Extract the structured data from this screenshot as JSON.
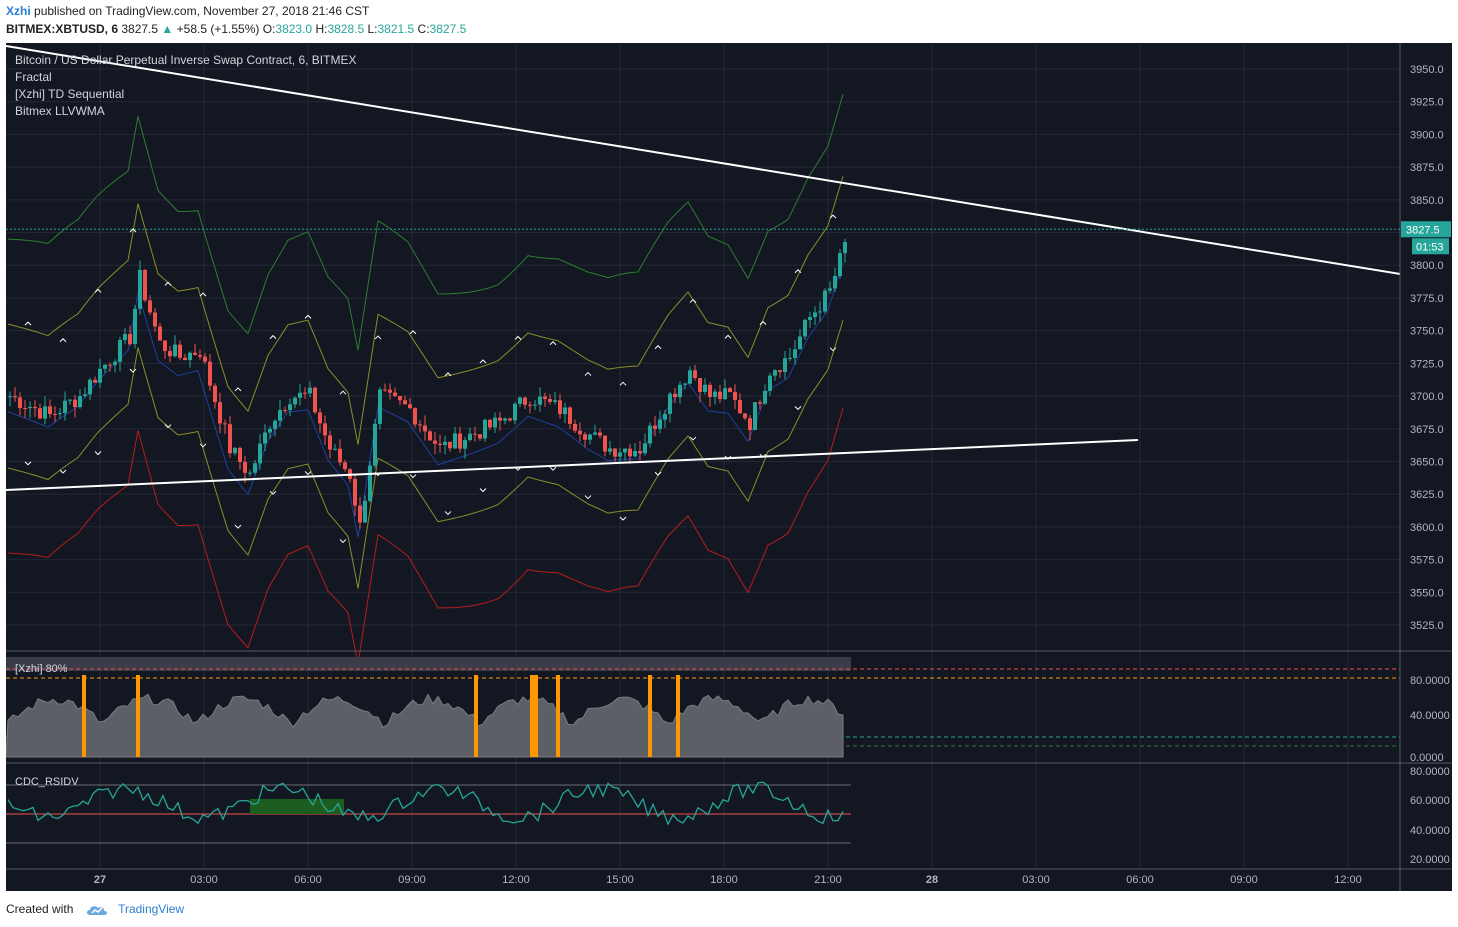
{
  "header": {
    "author": "Xzhi",
    "published_text": "published on TradingView.com, November 27, 2018 21:46 CST",
    "symbol_line": "BITMEX:XBTUSD, 6",
    "last_price": "3827.5",
    "change_arrow": "▲",
    "change": "+58.5 (+1.55%)",
    "ohlc": {
      "o_label": "O:",
      "o": "3823.0",
      "h_label": "H:",
      "h": "3828.5",
      "l_label": "L:",
      "l": "3821.5",
      "c_label": "C:",
      "c": "3827.5"
    }
  },
  "legend": {
    "title": "Bitcoin / US Dollar Perpetual Inverse Swap Contract, 6, BITMEX",
    "items": [
      "Fractal",
      "[Xzhi] TD Sequential",
      "Bitmex LLVWMA"
    ]
  },
  "price_axis": {
    "labels": [
      "3950.0",
      "3925.0",
      "3900.0",
      "3875.0",
      "3850.0",
      "3825.0",
      "3800.0",
      "3775.0",
      "3750.0",
      "3725.0",
      "3700.0",
      "3675.0",
      "3650.0",
      "3625.0",
      "3600.0",
      "3575.0",
      "3550.0",
      "3525.0"
    ],
    "current_price": "3827.5",
    "countdown": "01:53"
  },
  "panel2": {
    "title": "[Xzhi] 80%",
    "labels": [
      "80.0000",
      "40.0000",
      "0.0000"
    ]
  },
  "panel3": {
    "title": "CDC_RSIDV",
    "labels": [
      "80.0000",
      "60.0000",
      "40.0000",
      "20.0000"
    ]
  },
  "time_axis": {
    "labels": [
      "27",
      "03:00",
      "06:00",
      "09:00",
      "12:00",
      "15:00",
      "18:00",
      "21:00",
      "28",
      "03:00",
      "06:00",
      "09:00",
      "12:00"
    ]
  },
  "footer": {
    "created_with": "Created with",
    "brand": "TradingView"
  },
  "colors": {
    "background": "#131722",
    "up": "#26a69a",
    "down": "#ef5350",
    "band_outer_top": "#2e7d32",
    "band_inner": "#8d8d2a",
    "band_outer_bottom": "#b71c1c",
    "vwma": "#1e40a0",
    "accent": "#2a7fd4"
  }
}
